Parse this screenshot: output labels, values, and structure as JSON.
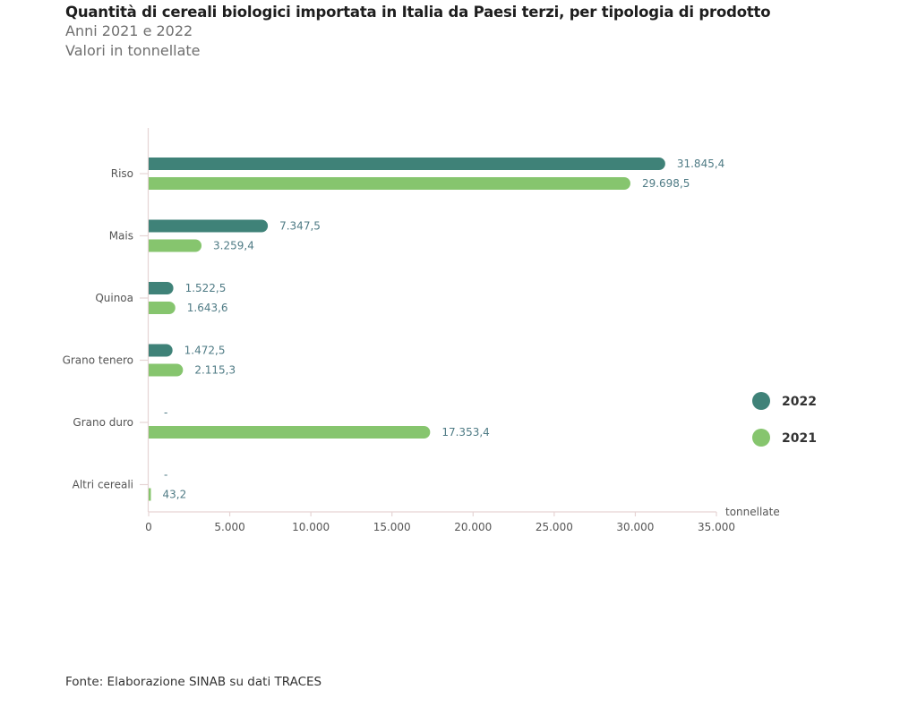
{
  "header": {
    "title": "Quantità di cereali biologici importata in Italia da Paesi terzi, per tipologia di prodotto",
    "subtitle_years": "Anni 2021 e 2022",
    "subtitle_units": "Valori in tonnellate"
  },
  "footer": {
    "source": "Fonte: Elaborazione SINAB su dati TRACES"
  },
  "colors": {
    "series_2022": "#3f8278",
    "series_2021": "#86c56e",
    "value_label": "#4f7b85",
    "axis": "#e6d4d4",
    "tick_label": "#555555"
  },
  "chart_data": {
    "type": "bar",
    "orientation": "horizontal",
    "categories": [
      "Riso",
      "Mais",
      "Quinoa",
      "Grano tenero",
      "Grano duro",
      "Altri cereali"
    ],
    "series": [
      {
        "name": "2022",
        "values": [
          31845.4,
          7347.5,
          1522.5,
          1472.5,
          null,
          null
        ],
        "labels": [
          "31.845,4",
          "7.347,5",
          "1.522,5",
          "1.472,5",
          "-",
          "-"
        ]
      },
      {
        "name": "2021",
        "values": [
          29698.5,
          3259.4,
          1643.6,
          2115.3,
          17353.4,
          43.2
        ],
        "labels": [
          "29.698,5",
          "3.259,4",
          "1.643,6",
          "2.115,3",
          "17.353,4",
          "43,2"
        ]
      }
    ],
    "xlabel": "tonnellate",
    "ylabel": "",
    "xlim": [
      0,
      35000
    ],
    "ticks": [
      0,
      5000,
      10000,
      15000,
      20000,
      25000,
      30000,
      35000
    ],
    "tick_labels": [
      "0",
      "5.000",
      "10.000",
      "15.000",
      "20.000",
      "25.000",
      "30.000",
      "35.000"
    ],
    "legend": {
      "position": "right",
      "entries": [
        "2022",
        "2021"
      ]
    },
    "grid": false
  }
}
